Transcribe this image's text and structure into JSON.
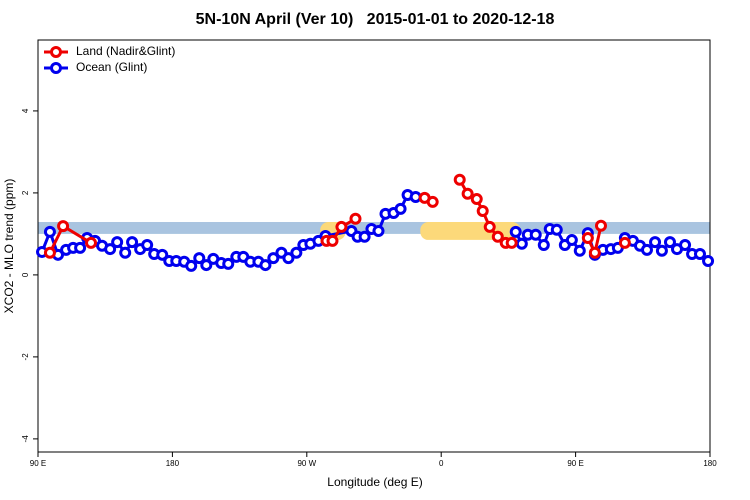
{
  "chart_data": {
    "type": "line",
    "title": "5N-10N April (Ver 10)   2015-01-01 to 2020-12-18",
    "x_label": "Longitude (deg E)",
    "y_label": "XCO2 - MLO trend (ppm)",
    "xlim": [
      90,
      540
    ],
    "xticks": [
      {
        "value": 90,
        "label": "90 E"
      },
      180,
      {
        "value": 270,
        "label": "90 W"
      },
      {
        "value": 360,
        "label": "0"
      },
      {
        "value": 450,
        "label": "90 E"
      },
      {
        "value": 540,
        "label": "180"
      }
    ],
    "ylim": [
      -4.32,
      5.73
    ],
    "yticks": [
      -4,
      -2,
      0,
      2,
      4
    ],
    "legend": "top-left",
    "strip": {
      "ylim": [
        1.0,
        1.29
      ],
      "ocean_color": "#a9c4e0",
      "land_color": "#fcd97a",
      "land": [
        [
          279,
          296
        ],
        [
          346,
          413
        ]
      ]
    },
    "series": [
      {
        "name": "Ocean (Glint)",
        "color": "#0000ee",
        "x": [
          92.7,
          98.0,
          103.4,
          108.8,
          113.5,
          118.2,
          122.9,
          128.2,
          132.9,
          138.3,
          143.0,
          148.4,
          153.0,
          158.4,
          163.1,
          167.8,
          173.2,
          177.9,
          182.6,
          187.9,
          192.6,
          198.0,
          202.7,
          207.4,
          212.7,
          217.4,
          222.8,
          227.5,
          232.2,
          237.6,
          242.3,
          247.6,
          253.0,
          257.7,
          263.0,
          267.7,
          272.4,
          277.8,
          282.5,
          299.9,
          304.0,
          308.7,
          313.3,
          318.0,
          322.7,
          328.1,
          332.8,
          337.5,
          342.9,
          null,
          409.9,
          414.0,
          418.0,
          423.3,
          428.7,
          432.7,
          437.4,
          442.8,
          447.5,
          452.8,
          458.2,
          462.9,
          468.3,
          473.6,
          478.3,
          483.0,
          488.4,
          493.1,
          497.8,
          503.2,
          507.8,
          513.2,
          517.9,
          523.3,
          528.0,
          533.3,
          538.7
        ],
        "values": [
          0.56,
          1.05,
          0.49,
          0.61,
          0.66,
          0.66,
          0.9,
          0.83,
          0.71,
          0.63,
          0.8,
          0.54,
          0.8,
          0.63,
          0.73,
          0.51,
          0.49,
          0.34,
          0.34,
          0.32,
          0.22,
          0.41,
          0.24,
          0.39,
          0.29,
          0.27,
          0.44,
          0.44,
          0.32,
          0.32,
          0.24,
          0.41,
          0.54,
          0.41,
          0.54,
          0.73,
          0.76,
          0.83,
          0.95,
          1.07,
          0.93,
          0.93,
          1.12,
          1.07,
          1.49,
          1.51,
          1.61,
          1.95,
          1.9,
          null,
          1.05,
          0.76,
          0.98,
          0.98,
          0.73,
          1.12,
          1.1,
          0.73,
          0.85,
          0.59,
          1.02,
          0.49,
          0.61,
          0.63,
          0.66,
          0.9,
          0.83,
          0.71,
          0.61,
          0.8,
          0.59,
          0.8,
          0.63,
          0.73,
          0.51,
          0.51,
          0.34
        ]
      },
      {
        "name": "Land (Nadir&Glint)",
        "color": "#ee0000",
        "x": [
          98.0,
          106.8,
          125.5,
          null,
          283.2,
          287.2,
          293.2,
          302.6,
          null,
          348.9,
          354.3,
          null,
          372.4,
          377.7,
          383.8,
          387.8,
          392.5,
          397.9,
          403.2,
          407.2,
          null,
          458.2,
          462.9,
          467.0,
          null,
          483.0
        ],
        "values": [
          0.54,
          1.19,
          0.78,
          null,
          0.83,
          0.83,
          1.17,
          1.37,
          null,
          1.88,
          1.78,
          null,
          2.32,
          1.98,
          1.85,
          1.56,
          1.17,
          0.93,
          0.78,
          0.78,
          null,
          0.9,
          0.54,
          1.2,
          null,
          0.78
        ]
      }
    ]
  }
}
